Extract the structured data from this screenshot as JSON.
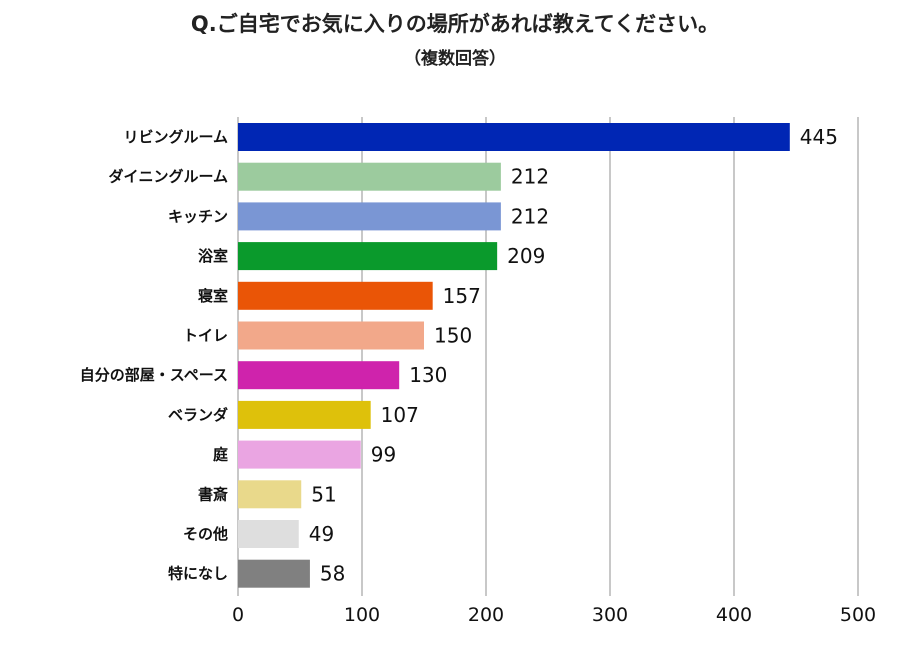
{
  "chart_data": {
    "type": "bar",
    "orientation": "horizontal",
    "title": "Q.ご自宅でお気に入りの場所があれば教えてください。",
    "subtitle": "（複数回答）",
    "categories": [
      "リビングルーム",
      "ダイニングルーム",
      "キッチン",
      "浴室",
      "寝室",
      "トイレ",
      "自分の部屋・スペース",
      "ベランダ",
      "庭",
      "書斎",
      "その他",
      "特になし"
    ],
    "values": [
      445,
      212,
      212,
      209,
      157,
      150,
      130,
      107,
      99,
      51,
      49,
      58
    ],
    "colors": [
      "#0026b4",
      "#9ccb9e",
      "#7a96d4",
      "#0a9a2c",
      "#ea5506",
      "#f2a88a",
      "#cf23ac",
      "#dec10b",
      "#eaa5e2",
      "#e9d98b",
      "#dedede",
      "#808080"
    ],
    "xlim": [
      0,
      500
    ],
    "xticks": [
      0,
      100,
      200,
      300,
      400,
      500
    ],
    "grid": true,
    "data_labels": true,
    "xlabel": "",
    "ylabel": ""
  }
}
